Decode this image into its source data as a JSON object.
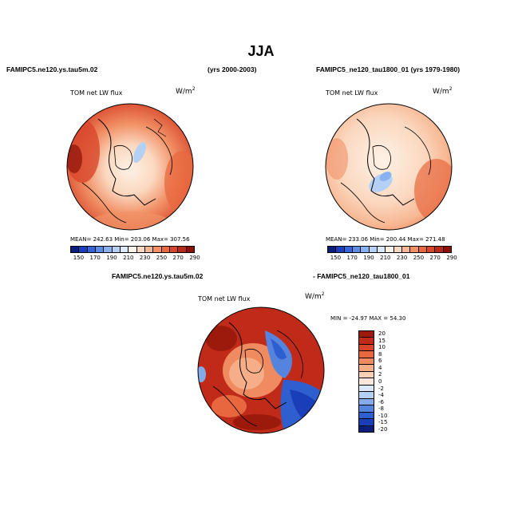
{
  "title": "JJA",
  "panels": [
    {
      "id": "left",
      "case_title": "FAMIPC5.ne120.ys.tau5m.02",
      "years": "(yrs 2000-2003)",
      "variable": "TOM net LW flux",
      "units_base": "W/m",
      "units_exp": "2",
      "stats": "MEAN= 242.63   Min= 203.06   Max= 307.56",
      "stats_values": {
        "mean": 242.63,
        "min": 203.06,
        "max": 307.56
      },
      "colorbar_labels": [
        "150",
        "170",
        "190",
        "210",
        "230",
        "250",
        "270",
        "290"
      ]
    },
    {
      "id": "right",
      "case_title": "FAMIPC5_ne120_tau1800_01 (yrs 1979-1980)",
      "variable": "TOM net LW flux",
      "units_base": "W/m",
      "units_exp": "2",
      "stats": "MEAN= 233.06   Min= 200.44   Max= 271.48",
      "stats_values": {
        "mean": 233.06,
        "min": 200.44,
        "max": 271.48
      },
      "colorbar_labels": [
        "150",
        "170",
        "190",
        "210",
        "230",
        "250",
        "270",
        "290"
      ]
    },
    {
      "id": "diff",
      "case_title_a": "FAMIPC5.ne120.ys.tau5m.02",
      "case_title_b": "- FAMIPC5_ne120_tau1800_01",
      "variable": "TOM net LW flux",
      "units_base": "W/m",
      "units_exp": "2",
      "stats": "MIN = -24.97  MAX =  54.30",
      "stats_values": {
        "min": -24.97,
        "max": 54.3
      },
      "colorbar_labels": [
        "20",
        "15",
        "10",
        "8",
        "6",
        "4",
        "2",
        "0",
        "-2",
        "-4",
        "-6",
        "-8",
        "-10",
        "-15",
        "-20"
      ]
    }
  ],
  "colors": {
    "abs_scale": [
      "#0a1e7a",
      "#1a3fbf",
      "#3566d9",
      "#5c8ee6",
      "#88b2ef",
      "#b4d0f5",
      "#dbe8fa",
      "#fdf2e6",
      "#fbd8c0",
      "#f7b792",
      "#f19166",
      "#e8683f",
      "#d8462a",
      "#b92a1a",
      "#8c1208"
    ],
    "diff_scale": [
      "#9c1a0c",
      "#c02a18",
      "#d8452a",
      "#e8673f",
      "#f08a60",
      "#f5ae88",
      "#f9d0b4",
      "#fbe8da",
      "#dbe8fa",
      "#b4cdf2",
      "#85aaea",
      "#5584de",
      "#2f5fcf",
      "#1a3db8",
      "#0a1e7a"
    ]
  }
}
